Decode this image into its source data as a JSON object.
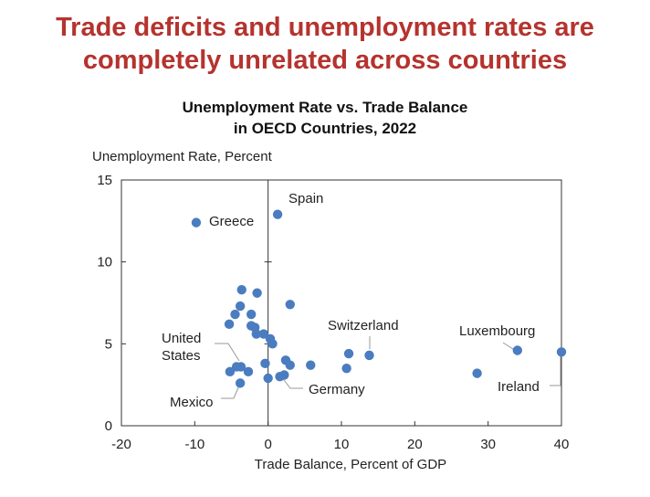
{
  "headline": {
    "line1": "Trade deficits and unemployment rates are",
    "line2": "completely unrelated across countries"
  },
  "chart_data": {
    "type": "scatter",
    "title_line1": "Unemployment Rate vs. Trade Balance",
    "title_line2": "in OECD Countries, 2022",
    "xlabel": "Trade Balance, Percent of GDP",
    "ylabel": "Unemployment Rate, Percent",
    "xlim": [
      -20,
      40
    ],
    "ylim": [
      0,
      15
    ],
    "xticks": [
      -20,
      -10,
      0,
      10,
      20,
      30,
      40
    ],
    "yticks": [
      0,
      5,
      10,
      15
    ],
    "grid": false,
    "zero_line": true,
    "point_color": "#4a7cc0",
    "points": [
      {
        "label": "Spain",
        "x": 1.3,
        "y": 12.9
      },
      {
        "label": "Greece",
        "x": -9.8,
        "y": 12.4
      },
      {
        "label": "",
        "x": -3.6,
        "y": 8.3
      },
      {
        "label": "",
        "x": -1.5,
        "y": 8.1
      },
      {
        "label": "",
        "x": -3.8,
        "y": 7.3
      },
      {
        "label": "",
        "x": 3.0,
        "y": 7.4
      },
      {
        "label": "",
        "x": -4.5,
        "y": 6.8
      },
      {
        "label": "",
        "x": -2.3,
        "y": 6.8
      },
      {
        "label": "",
        "x": -5.3,
        "y": 6.2
      },
      {
        "label": "",
        "x": -2.3,
        "y": 6.1
      },
      {
        "label": "",
        "x": -1.8,
        "y": 6.0
      },
      {
        "label": "",
        "x": -1.6,
        "y": 5.6
      },
      {
        "label": "",
        "x": -0.6,
        "y": 5.6
      },
      {
        "label": "",
        "x": 0.3,
        "y": 5.3
      },
      {
        "label": "",
        "x": 0.6,
        "y": 5.0
      },
      {
        "label": "Switzerland",
        "x": 13.8,
        "y": 4.3
      },
      {
        "label": "",
        "x": 11.0,
        "y": 4.4
      },
      {
        "label": "Luxembourg",
        "x": 34.0,
        "y": 4.6
      },
      {
        "label": "Ireland",
        "x": 40.0,
        "y": 4.5
      },
      {
        "label": "",
        "x": 28.5,
        "y": 3.2
      },
      {
        "label": "",
        "x": 10.7,
        "y": 3.5
      },
      {
        "label": "",
        "x": 5.8,
        "y": 3.7
      },
      {
        "label": "",
        "x": 3.0,
        "y": 3.7
      },
      {
        "label": "",
        "x": 2.4,
        "y": 4.0
      },
      {
        "label": "",
        "x": -0.4,
        "y": 3.8
      },
      {
        "label": "United States",
        "x": -3.7,
        "y": 3.6
      },
      {
        "label": "",
        "x": -4.3,
        "y": 3.6
      },
      {
        "label": "",
        "x": -2.7,
        "y": 3.3
      },
      {
        "label": "",
        "x": -5.2,
        "y": 3.3
      },
      {
        "label": "Germany",
        "x": 1.6,
        "y": 3.0
      },
      {
        "label": "",
        "x": 2.2,
        "y": 3.1
      },
      {
        "label": "",
        "x": 0.0,
        "y": 2.9
      },
      {
        "label": "Mexico",
        "x": -3.8,
        "y": 2.6
      }
    ],
    "annotations": [
      {
        "text": "Spain",
        "leader": false
      },
      {
        "text": "Greece",
        "leader": false
      },
      {
        "text": "Switzerland",
        "leader": true
      },
      {
        "text": "Luxembourg",
        "leader": true
      },
      {
        "text": "Ireland",
        "leader": true
      },
      {
        "text": "United",
        "leader": true
      },
      {
        "text": "States",
        "leader": false
      },
      {
        "text": "Germany",
        "leader": true
      },
      {
        "text": "Mexico",
        "leader": true
      }
    ]
  }
}
